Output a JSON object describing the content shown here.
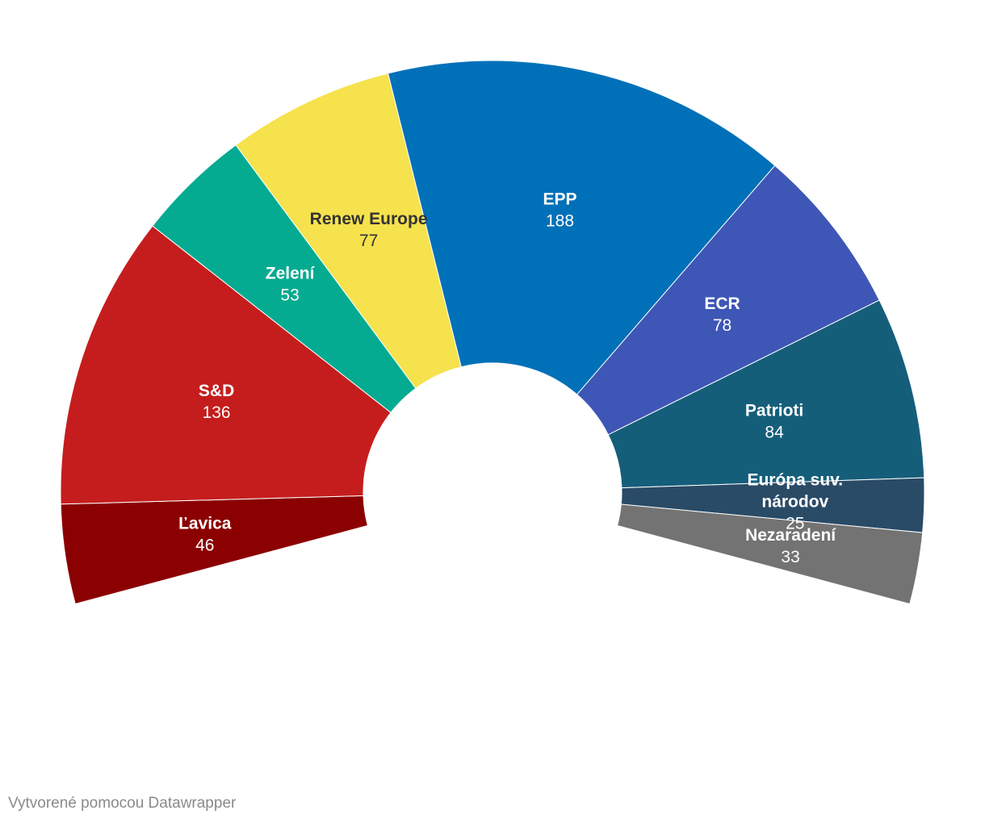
{
  "chart_data": {
    "type": "pie",
    "variant": "half-donut",
    "slices": [
      {
        "label": "Ľavica",
        "value": 46,
        "color": "#8b0000",
        "text_color": "#ffffff"
      },
      {
        "label": "S&D",
        "value": 136,
        "color": "#c51d1d",
        "text_color": "#ffffff"
      },
      {
        "label": "Zelení",
        "value": 53,
        "color": "#04ab91",
        "text_color": "#ffffff"
      },
      {
        "label": "Renew Europe",
        "value": 77,
        "color": "#f6e24c",
        "text_color": "#333333"
      },
      {
        "label": "EPP",
        "value": 188,
        "color": "#0071b8",
        "text_color": "#ffffff"
      },
      {
        "label": "ECR",
        "value": 78,
        "color": "#3e56b5",
        "text_color": "#ffffff"
      },
      {
        "label": "Patrioti",
        "value": 84,
        "color": "#155e7a",
        "text_color": "#ffffff"
      },
      {
        "label": "Európa suv. národov",
        "value": 25,
        "color": "#2a4b66",
        "text_color": "#ffffff"
      },
      {
        "label": "Nezaradení",
        "value": 33,
        "color": "#737373",
        "text_color": "#ffffff"
      }
    ]
  },
  "footer": {
    "credit": "Vytvorené pomocou Datawrapper"
  }
}
